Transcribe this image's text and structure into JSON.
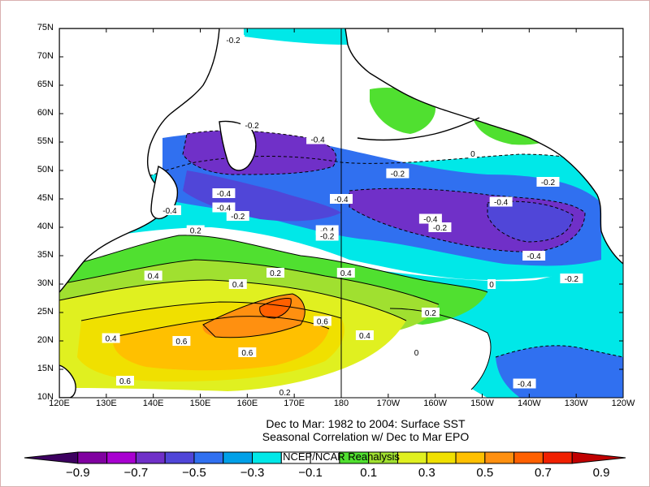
{
  "caption": {
    "line1": "Dec to Mar: 1982 to 2004: Surface SST",
    "line2": "Seasonal Correlation w/ Dec to Mar EPO",
    "credit": "NCEP/NCAR Reanalysis"
  },
  "axes": {
    "lat_labels": [
      "75N",
      "70N",
      "65N",
      "60N",
      "55N",
      "50N",
      "45N",
      "40N",
      "35N",
      "30N",
      "25N",
      "20N",
      "15N",
      "10N"
    ],
    "lon_labels": [
      "120E",
      "130E",
      "140E",
      "150E",
      "160E",
      "170E",
      "180",
      "170W",
      "160W",
      "150W",
      "140W",
      "130W",
      "120W"
    ]
  },
  "colorbar": {
    "colors": [
      "#3d0060",
      "#8000a0",
      "#a800d0",
      "#7030c8",
      "#5046d8",
      "#3070f0",
      "#00a0e8",
      "#00e8e8",
      "#ffffff",
      "#ffffff",
      "#50e030",
      "#a0e030",
      "#e0f020",
      "#f0e000",
      "#ffc000",
      "#ff9010",
      "#ff6000",
      "#f02000",
      "#c00000"
    ],
    "tick_labels": [
      "−0.9",
      "−0.7",
      "−0.5",
      "−0.3",
      "−0.1",
      "0.1",
      "0.3",
      "0.5",
      "0.7",
      "0.9"
    ]
  },
  "contour_labels": [
    {
      "text": "-0.2",
      "lon": 157,
      "lat": 73
    },
    {
      "text": "-0.2",
      "lon": 161,
      "lat": 58
    },
    {
      "text": "-0.4",
      "lon": 175,
      "lat": 55.5
    },
    {
      "text": "-0.4",
      "lon": 143.5,
      "lat": 43
    },
    {
      "text": "-0.4",
      "lon": 155,
      "lat": 46
    },
    {
      "text": "-0.4",
      "lon": 155,
      "lat": 43.5
    },
    {
      "text": "-0.2",
      "lon": 158,
      "lat": 42
    },
    {
      "text": "-0.4",
      "lon": 180,
      "lat": 45
    },
    {
      "text": "-0.4",
      "lon": 177,
      "lat": 39.5
    },
    {
      "text": "-0.2",
      "lon": 177,
      "lat": 38.5
    },
    {
      "text": "0.2",
      "lon": 149,
      "lat": 39.5
    },
    {
      "text": "0.2",
      "lon": 166,
      "lat": 32
    },
    {
      "text": "0.4",
      "lon": 181,
      "lat": 32
    },
    {
      "text": "0.4",
      "lon": 140,
      "lat": 31.5
    },
    {
      "text": "0.4",
      "lon": 158,
      "lat": 30
    },
    {
      "text": "-0.2",
      "lon": -168,
      "lat": 49.5
    },
    {
      "text": "-0.4",
      "lon": -161,
      "lat": 41.5
    },
    {
      "text": "-0.2",
      "lon": -159,
      "lat": 40
    },
    {
      "text": "-0.4",
      "lon": -146,
      "lat": 44.5
    },
    {
      "text": "-0.2",
      "lon": -136,
      "lat": 48
    },
    {
      "text": "-0.4",
      "lon": -139,
      "lat": 35
    },
    {
      "text": "-0.2",
      "lon": -131,
      "lat": 31
    },
    {
      "text": "0.4",
      "lon": 131,
      "lat": 20.5
    },
    {
      "text": "0.6",
      "lon": 146,
      "lat": 20
    },
    {
      "text": "0.6",
      "lon": 176,
      "lat": 23.5
    },
    {
      "text": "0.6",
      "lon": 160,
      "lat": 18
    },
    {
      "text": "0.4",
      "lon": -175,
      "lat": 21
    },
    {
      "text": "0.2",
      "lon": -161,
      "lat": 25
    },
    {
      "text": "0.6",
      "lon": 134,
      "lat": 13
    },
    {
      "text": "0.2",
      "lon": 168,
      "lat": 11
    },
    {
      "text": "-0.4",
      "lon": -141,
      "lat": 12.5
    },
    {
      "text": "0",
      "lon": -164,
      "lat": 18
    },
    {
      "text": "0",
      "lon": -148,
      "lat": 30
    },
    {
      "text": "0",
      "lon": -152,
      "lat": 53
    }
  ]
}
